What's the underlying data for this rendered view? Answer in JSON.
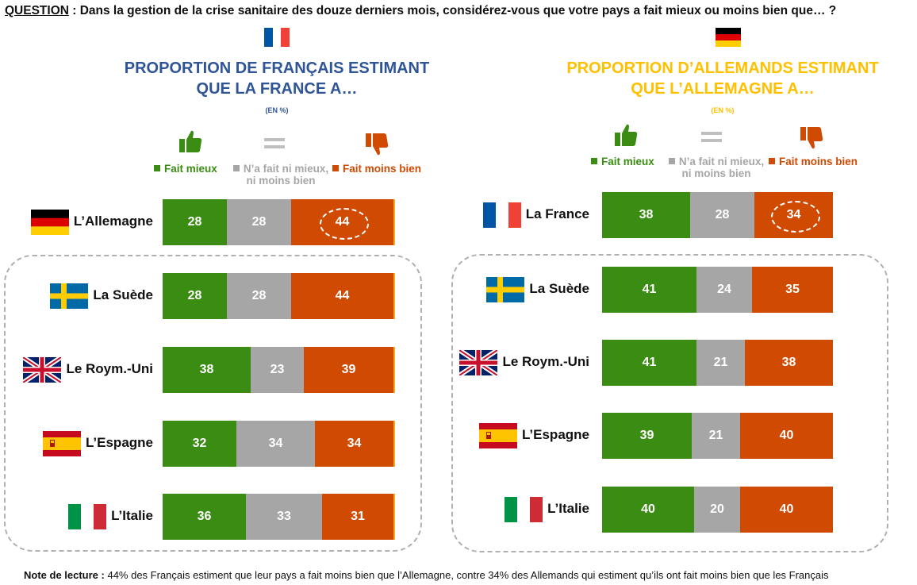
{
  "question": {
    "label": "QUESTION",
    "text": " : Dans la gestion de la crise sanitaire des douze derniers mois, considérez-vous que votre pays a fait mieux ou moins bien que… ?"
  },
  "colors": {
    "green": "#3a8c12",
    "grey": "#a6a6a6",
    "orange": "#d04a02",
    "blue": "#2f5597",
    "yellow": "#ffc000"
  },
  "legend": {
    "better": "Fait mieux",
    "same_line1": "N’a fait ni mieux,",
    "same_line2": "ni moins bien",
    "worse": "Fait moins bien",
    "icons": [
      "thumbs-up-icon",
      "equals-icon",
      "thumbs-down-icon"
    ]
  },
  "panels": [
    {
      "title_line1": "PROPORTION DE FRANÇAIS ESTIMANT",
      "title_line2": "QUE LA FRANCE A…",
      "unit": "(EN %)",
      "flag": "france"
    },
    {
      "title_line1": "PROPORTION D’ALLEMANDS ESTIMANT",
      "title_line2": "QUE L’ALLEMAGNE A…",
      "unit": "(EN %)",
      "flag": "germany"
    }
  ],
  "chart_data": [
    {
      "type": "bar",
      "orientation": "horizontal",
      "stacked": true,
      "categories": [
        "L’Allemagne",
        "La Suède",
        "Le Roym.-Uni",
        "L’Espagne",
        "L’Italie"
      ],
      "series": [
        {
          "name": "Fait mieux",
          "values": [
            28,
            28,
            38,
            32,
            36
          ]
        },
        {
          "name": "N’a fait ni mieux, ni moins bien",
          "values": [
            28,
            28,
            23,
            34,
            33
          ]
        },
        {
          "name": "Fait moins bien",
          "values": [
            44,
            44,
            39,
            34,
            31
          ]
        }
      ],
      "highlight": {
        "category": "L’Allemagne",
        "series": "Fait moins bien",
        "value": 44
      }
    },
    {
      "type": "bar",
      "orientation": "horizontal",
      "stacked": true,
      "categories": [
        "La France",
        "La Suède",
        "Le Roym.-Uni",
        "L’Espagne",
        "L’Italie"
      ],
      "series": [
        {
          "name": "Fait mieux",
          "values": [
            38,
            41,
            41,
            39,
            40
          ]
        },
        {
          "name": "N’a fait ni mieux, ni moins bien",
          "values": [
            28,
            24,
            21,
            21,
            20
          ]
        },
        {
          "name": "Fait moins bien",
          "values": [
            34,
            35,
            38,
            40,
            40
          ]
        }
      ],
      "highlight": {
        "category": "La France",
        "series": "Fait moins bien",
        "value": 34
      }
    }
  ],
  "row_flags": [
    [
      "germany",
      "sweden",
      "uk",
      "spain",
      "italy"
    ],
    [
      "france",
      "sweden",
      "uk",
      "spain",
      "italy"
    ]
  ],
  "note": {
    "label": "Note de lecture :",
    "text": " 44% des Français estiment que leur pays a fait moins bien que l’Allemagne, contre 34% des Allemands qui estiment qu’ils ont fait moins bien que les Français"
  }
}
